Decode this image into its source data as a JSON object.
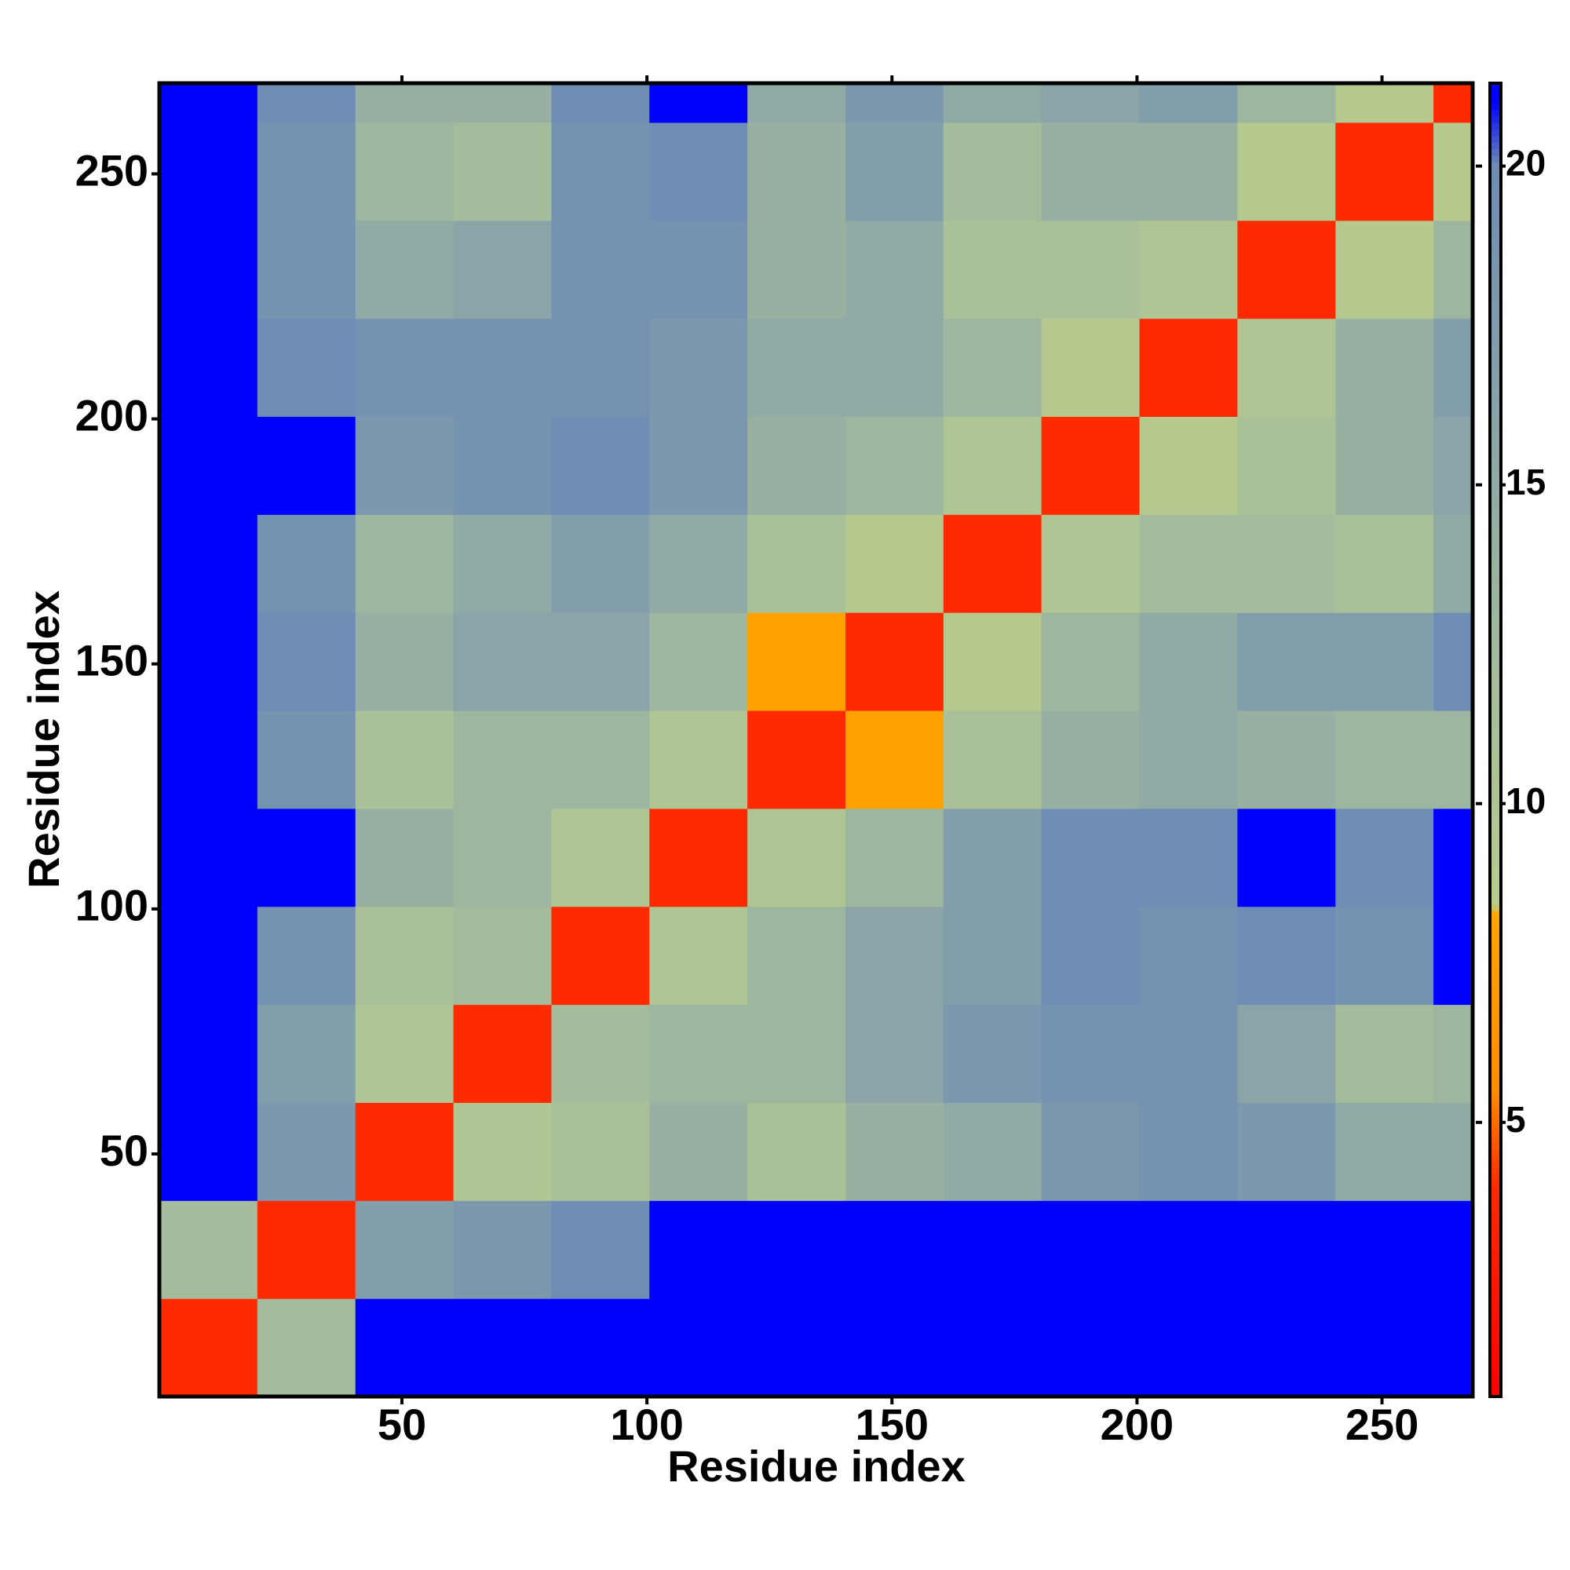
{
  "chart_data": {
    "type": "heatmap",
    "xlabel": "Residue index",
    "ylabel": "Residue index",
    "xbins": [
      0.5,
      20.5,
      40.5,
      60.5,
      80.5,
      100.5,
      120.5,
      140.5,
      160.5,
      180.5,
      200.5,
      220.5,
      240.5,
      260.5,
      268.5
    ],
    "ybins": [
      0.5,
      20.5,
      40.5,
      60.5,
      80.5,
      100.5,
      120.5,
      140.5,
      160.5,
      180.5,
      200.5,
      220.5,
      240.5,
      260.5,
      268.5
    ],
    "z": [
      [
        4,
        12,
        21,
        21,
        21,
        21,
        21,
        21,
        21,
        21,
        21,
        21,
        21,
        21
      ],
      [
        12,
        4,
        17,
        18,
        20,
        21,
        21,
        21,
        21,
        21,
        21,
        21,
        21,
        21
      ],
      [
        21,
        18,
        4,
        10,
        11,
        14,
        11,
        14,
        15,
        18,
        19,
        18,
        15,
        15
      ],
      [
        21,
        17,
        10,
        4,
        12,
        13,
        13,
        16,
        18,
        19,
        19,
        16,
        12,
        13
      ],
      [
        21,
        19,
        11,
        12,
        4,
        10,
        13,
        16,
        17,
        20,
        19,
        20,
        19,
        21
      ],
      [
        21,
        21,
        14,
        13,
        10,
        4,
        10,
        13,
        17,
        20,
        20,
        21,
        20,
        21
      ],
      [
        21,
        19,
        11,
        13,
        13,
        10,
        4,
        8,
        11,
        14,
        15,
        14,
        13,
        13
      ],
      [
        21,
        20,
        14,
        16,
        16,
        13,
        8,
        4,
        9,
        13,
        15,
        17,
        17,
        20
      ],
      [
        21,
        19,
        13,
        15,
        17,
        15,
        11,
        9,
        4,
        10,
        12,
        12,
        11,
        15
      ],
      [
        21,
        21,
        18,
        19,
        20,
        18,
        14,
        13,
        10,
        4,
        9,
        11,
        14,
        16
      ],
      [
        21,
        20,
        19,
        19,
        19,
        18,
        15,
        15,
        13,
        9,
        4,
        10,
        14,
        17
      ],
      [
        21,
        19,
        15,
        16,
        19,
        19,
        14,
        15,
        11,
        11,
        10,
        4,
        9,
        13
      ],
      [
        21,
        19,
        13,
        12,
        19,
        20,
        14,
        17,
        12,
        14,
        14,
        9,
        4,
        9
      ],
      [
        21,
        20,
        14,
        14,
        20,
        21,
        15,
        18,
        15,
        16,
        17,
        13,
        9,
        4
      ]
    ],
    "xlim": [
      0.5,
      268.5
    ],
    "ylim": [
      0.5,
      268.5
    ],
    "xticks": [
      50,
      100,
      150,
      200,
      250
    ],
    "yticks": [
      50,
      100,
      150,
      200,
      250
    ],
    "colorbar": {
      "lim": [
        0.7,
        21.3
      ],
      "ticks": [
        5,
        10,
        15,
        20
      ],
      "stops": [
        [
          0.7,
          "#ff0000"
        ],
        [
          4,
          "#ff2a00"
        ],
        [
          5.5,
          "#ff8c00"
        ],
        [
          8.3,
          "#ffa500"
        ],
        [
          8.4,
          "#b8cc8c"
        ],
        [
          12,
          "#a4bc9c"
        ],
        [
          20,
          "#6f8cb4"
        ],
        [
          21,
          "#0000ff"
        ],
        [
          21.3,
          "#0000ff"
        ]
      ]
    }
  }
}
